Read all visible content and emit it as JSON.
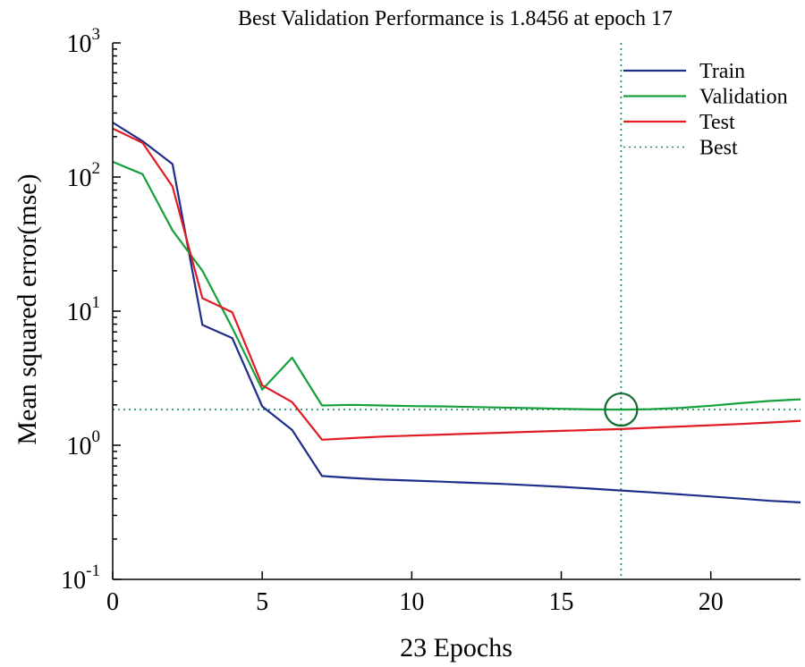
{
  "chart_data": {
    "type": "line",
    "title": "Best Validation Performance is 1.8456 at epoch 17",
    "xlabel": "23 Epochs",
    "ylabel": "Mean squared error(mse)",
    "xlim": [
      0,
      23
    ],
    "ylim": [
      0.1,
      1000
    ],
    "yscale": "log",
    "grid": false,
    "legend_position": "top-right",
    "xticks": [
      0,
      5,
      10,
      15,
      20
    ],
    "yticks": [
      {
        "value": 1000,
        "base": "10",
        "exp": "3"
      },
      {
        "value": 100,
        "base": "10",
        "exp": "2"
      },
      {
        "value": 10,
        "base": "10",
        "exp": "1"
      },
      {
        "value": 1,
        "base": "10",
        "exp": "0"
      },
      {
        "value": 0.1,
        "base": "10",
        "exp": "-1"
      }
    ],
    "x": [
      0,
      1,
      2,
      3,
      4,
      5,
      6,
      7,
      8,
      9,
      10,
      11,
      12,
      13,
      14,
      15,
      16,
      17,
      18,
      19,
      20,
      21,
      22,
      23
    ],
    "series": [
      {
        "name": "Train",
        "color": "#1f2d8a",
        "values": [
          255,
          185,
          125,
          7.9,
          6.3,
          1.95,
          1.3,
          0.59,
          0.57,
          0.555,
          0.545,
          0.535,
          0.525,
          0.515,
          0.503,
          0.49,
          0.475,
          0.46,
          0.445,
          0.43,
          0.415,
          0.4,
          0.385,
          0.375
        ]
      },
      {
        "name": "Validation",
        "color": "#16a03c",
        "values": [
          130,
          105,
          40,
          20,
          7.5,
          2.6,
          4.5,
          1.98,
          2.0,
          1.98,
          1.96,
          1.95,
          1.93,
          1.91,
          1.89,
          1.87,
          1.85,
          1.8456,
          1.86,
          1.9,
          1.97,
          2.06,
          2.14,
          2.2
        ]
      },
      {
        "name": "Test",
        "color": "#e11b22",
        "values": [
          230,
          180,
          85,
          12.5,
          9.8,
          2.8,
          2.1,
          1.1,
          1.13,
          1.16,
          1.18,
          1.2,
          1.22,
          1.24,
          1.26,
          1.28,
          1.3,
          1.32,
          1.35,
          1.38,
          1.41,
          1.44,
          1.48,
          1.52
        ]
      }
    ],
    "best": {
      "name": "Best",
      "color": "#1a8a5a",
      "epoch": 17,
      "value": 1.8456
    },
    "marker_color": "#0f6b2e"
  }
}
